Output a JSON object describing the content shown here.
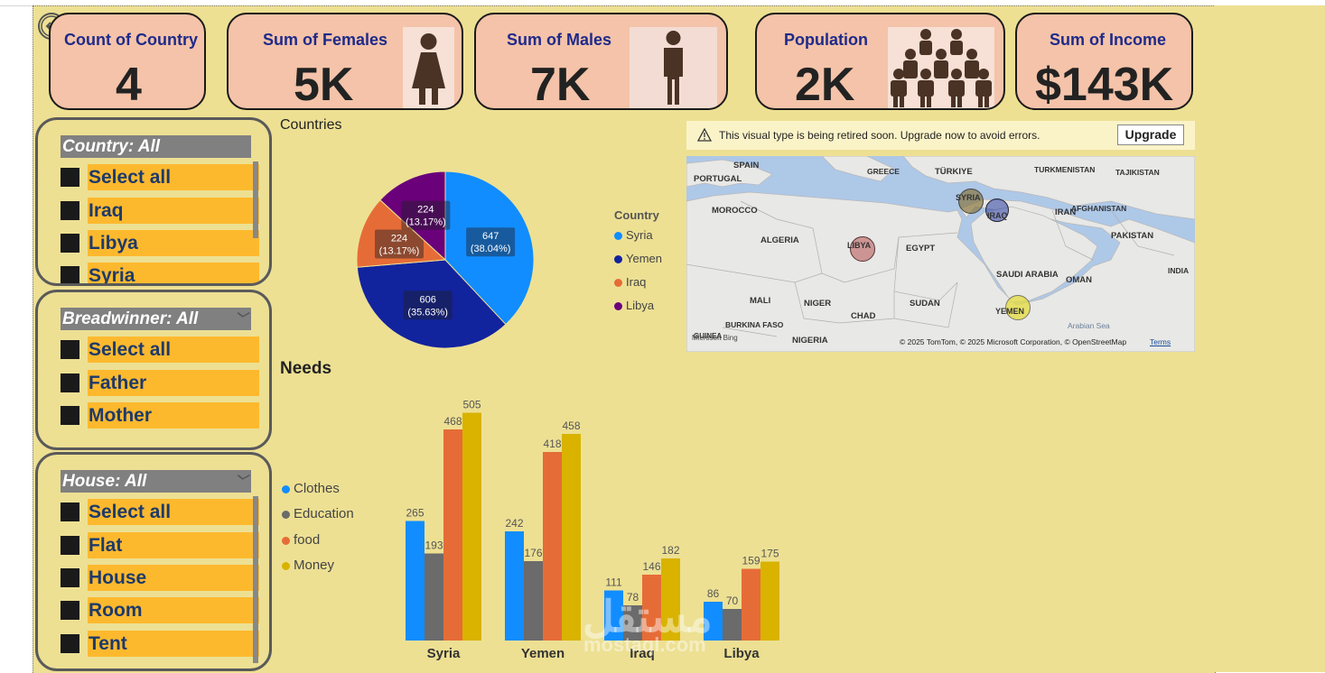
{
  "kpis": [
    {
      "title": "Count of Country",
      "value": "4"
    },
    {
      "title": "Sum of Females",
      "value": "5K"
    },
    {
      "title": "Sum of Males",
      "value": "7K"
    },
    {
      "title": "Population",
      "value": "2K"
    },
    {
      "title": "Sum of Income",
      "value": "$143K"
    }
  ],
  "slicers": {
    "country": {
      "header": "Country: All",
      "items": [
        "Select all",
        "Iraq",
        "Libya",
        "Syria"
      ]
    },
    "breadwinner": {
      "header": "Breadwinner: All",
      "items": [
        "Select all",
        "Father",
        "Mother"
      ]
    },
    "house": {
      "header": "House: All",
      "items": [
        "Select all",
        "Flat",
        "House",
        "Room",
        "Tent"
      ]
    }
  },
  "countries_title": "Countries",
  "needs_title": "Needs",
  "warning": {
    "text": "This visual type is being retired soon. Upgrade now to avoid errors.",
    "button": "Upgrade"
  },
  "map": {
    "labels": [
      "SPAIN",
      "PORTUGAL",
      "GREECE",
      "TÜRKIYE",
      "TURKMENISTAN",
      "TAJIKISTAN",
      "MOROCCO",
      "IRAN",
      "AFGHANISTAN",
      "ALGERIA",
      "EGYPT",
      "PAKISTAN",
      "SAUDI ARABIA",
      "OMAN",
      "INDIA",
      "MALI",
      "NIGER",
      "SUDAN",
      "CHAD",
      "BURKINA FASO",
      "NIGERIA",
      "Arabian Sea",
      "GUINEA"
    ],
    "bubbles": [
      "SYRIA",
      "IRAQ",
      "LIBYA",
      "YEMEN"
    ],
    "copyright": "© 2025 TomTom, © 2025 Microsoft Corporation, © OpenStreetMap",
    "terms": "Terms",
    "bing": "Microsoft Bing"
  },
  "watermark": {
    "logo": "مستقل",
    "site": "mostaql.com"
  },
  "colors": {
    "canvas": "#ede093",
    "card": "#f4c3a9",
    "slicer_item": "#fdb92e",
    "syria": "#118dff",
    "yemen": "#12239e",
    "iraq": "#e66c37",
    "libya": "#6b007b",
    "clothes": "#118dff",
    "education": "#6b6b6b",
    "food": "#e66c37",
    "money": "#d9b300"
  },
  "chart_data": [
    {
      "type": "pie",
      "title": "Countries",
      "legend_title": "Country",
      "categories": [
        "Syria",
        "Yemen",
        "Iraq",
        "Libya"
      ],
      "values": [
        647,
        606,
        224,
        224
      ],
      "labels": [
        "647\n(38.04%)",
        "606\n(35.63%)",
        "224\n(13.17%)",
        "224\n(13.17%)"
      ]
    },
    {
      "type": "bar",
      "title": "Needs",
      "categories": [
        "Syria",
        "Yemen",
        "Iraq",
        "Libya"
      ],
      "series": [
        {
          "name": "Clothes",
          "values": [
            265,
            242,
            111,
            86
          ]
        },
        {
          "name": "Education",
          "values": [
            193,
            176,
            78,
            70
          ]
        },
        {
          "name": "food",
          "values": [
            468,
            418,
            146,
            159
          ]
        },
        {
          "name": "Money",
          "values": [
            505,
            458,
            182,
            175
          ]
        }
      ],
      "ylim": [
        0,
        520
      ]
    }
  ]
}
